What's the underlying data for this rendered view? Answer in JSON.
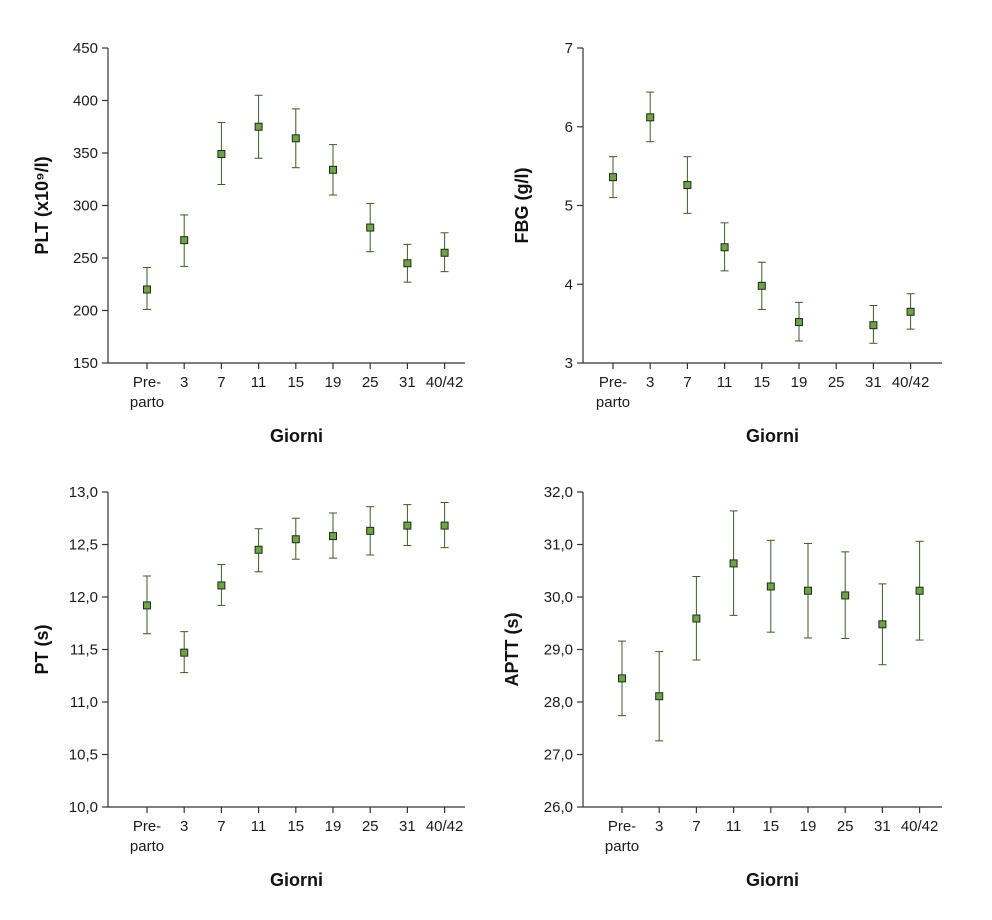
{
  "chart_data": [
    {
      "type": "scatter",
      "title": "",
      "xlabel": "Giorni",
      "ylabel": "PLT (x10⁹/l)",
      "categories": [
        [
          "Pre-",
          "parto"
        ],
        [
          "3"
        ],
        [
          "7"
        ],
        [
          "11"
        ],
        [
          "15"
        ],
        [
          "19"
        ],
        [
          "25"
        ],
        [
          "31"
        ],
        [
          "40/42"
        ]
      ],
      "ylim": [
        150,
        450
      ],
      "yticks": [
        150,
        200,
        250,
        300,
        350,
        400,
        450
      ],
      "yticklabels": [
        "150",
        "200",
        "250",
        "300",
        "350",
        "400",
        "450"
      ],
      "series": [
        {
          "name": "PLT",
          "values": [
            220,
            267,
            349,
            375,
            364,
            334,
            279,
            245,
            255
          ],
          "err_low": [
            201,
            242,
            320,
            345,
            336,
            310,
            256,
            227,
            237
          ],
          "err_high": [
            241,
            291,
            379,
            405,
            392,
            358,
            302,
            263,
            274
          ]
        }
      ]
    },
    {
      "type": "scatter",
      "title": "",
      "xlabel": "Giorni",
      "ylabel": "FBG (g/l)",
      "categories": [
        [
          "Pre-",
          "parto"
        ],
        [
          "3"
        ],
        [
          "7"
        ],
        [
          "11"
        ],
        [
          "15"
        ],
        [
          "19"
        ],
        [
          "25"
        ],
        [
          "31"
        ],
        [
          "40/42"
        ]
      ],
      "ylim": [
        3,
        7
      ],
      "yticks": [
        3,
        4,
        5,
        6,
        7
      ],
      "yticklabels": [
        "3",
        "4",
        "5",
        "6",
        "7"
      ],
      "series": [
        {
          "name": "FBG",
          "values": [
            5.36,
            6.12,
            5.26,
            4.47,
            3.98,
            3.52,
            null,
            3.48,
            3.65
          ],
          "err_low": [
            5.1,
            5.81,
            4.9,
            4.17,
            3.68,
            3.28,
            null,
            3.25,
            3.43
          ],
          "err_high": [
            5.62,
            6.44,
            5.62,
            4.78,
            4.28,
            3.77,
            null,
            3.73,
            3.88
          ]
        }
      ]
    },
    {
      "type": "scatter",
      "title": "",
      "xlabel": "Giorni",
      "ylabel": "PT (s)",
      "categories": [
        [
          "Pre-",
          "parto"
        ],
        [
          "3"
        ],
        [
          "7"
        ],
        [
          "11"
        ],
        [
          "15"
        ],
        [
          "19"
        ],
        [
          "25"
        ],
        [
          "31"
        ],
        [
          "40/42"
        ]
      ],
      "ylim": [
        10,
        13
      ],
      "yticks": [
        10,
        10.5,
        11,
        11.5,
        12,
        12.5,
        13
      ],
      "yticklabels": [
        "10,0",
        "10,5",
        "11,0",
        "11,5",
        "12,0",
        "12,5",
        "13,0"
      ],
      "series": [
        {
          "name": "PT",
          "values": [
            11.92,
            11.47,
            12.11,
            12.45,
            12.55,
            12.58,
            12.63,
            12.68,
            12.68
          ],
          "err_low": [
            11.65,
            11.28,
            11.92,
            12.24,
            12.36,
            12.37,
            12.4,
            12.49,
            12.47
          ],
          "err_high": [
            12.2,
            11.67,
            12.31,
            12.65,
            12.75,
            12.8,
            12.86,
            12.88,
            12.9
          ]
        }
      ]
    },
    {
      "type": "scatter",
      "title": "",
      "xlabel": "Giorni",
      "ylabel": "APTT (s)",
      "categories": [
        [
          "Pre-",
          "parto"
        ],
        [
          "3"
        ],
        [
          "7"
        ],
        [
          "11"
        ],
        [
          "15"
        ],
        [
          "19"
        ],
        [
          "25"
        ],
        [
          "31"
        ],
        [
          "40/42"
        ]
      ],
      "ylim": [
        26,
        32
      ],
      "yticks": [
        26,
        27,
        28,
        29,
        30,
        31,
        32
      ],
      "yticklabels": [
        "26,0",
        "27,0",
        "28,0",
        "29,0",
        "30,0",
        "31,0",
        "32,0"
      ],
      "series": [
        {
          "name": "APTT",
          "values": [
            28.45,
            28.11,
            29.59,
            30.64,
            30.2,
            30.12,
            30.03,
            29.48,
            30.12
          ],
          "err_low": [
            27.74,
            27.26,
            28.8,
            29.65,
            29.33,
            29.22,
            29.21,
            28.71,
            29.18
          ],
          "err_high": [
            29.16,
            28.96,
            30.39,
            31.64,
            31.08,
            31.02,
            30.86,
            30.25,
            31.06
          ]
        }
      ]
    }
  ],
  "colors": {
    "marker_fill": "#6fa24a",
    "marker_stroke": "#1d2d10",
    "errbar": "#3d5a25",
    "axis": "#333333"
  }
}
